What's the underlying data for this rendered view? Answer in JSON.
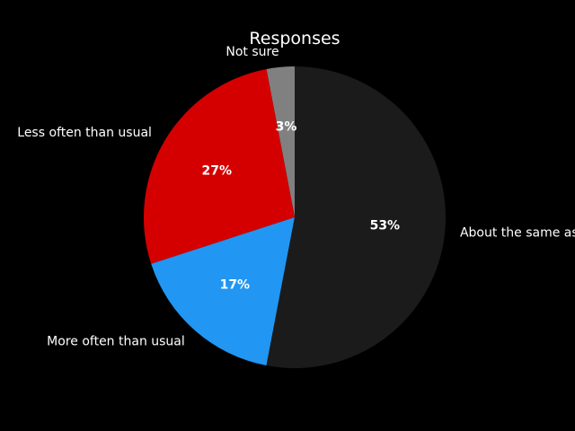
{
  "chart_data": {
    "type": "pie",
    "title": "Responses",
    "start_angle_deg": 90,
    "direction": "counterclockwise",
    "slices": [
      {
        "label": "Not sure",
        "value": 3,
        "percent_label": "3%",
        "color": "#808080"
      },
      {
        "label": "Less often than usual",
        "value": 27,
        "percent_label": "27%",
        "color": "#d40000"
      },
      {
        "label": "More often than usual",
        "value": 17,
        "percent_label": "17%",
        "color": "#2196f3"
      },
      {
        "label": "About the same as usual",
        "value": 53,
        "percent_label": "53%",
        "color": "#1b1b1b"
      }
    ]
  }
}
